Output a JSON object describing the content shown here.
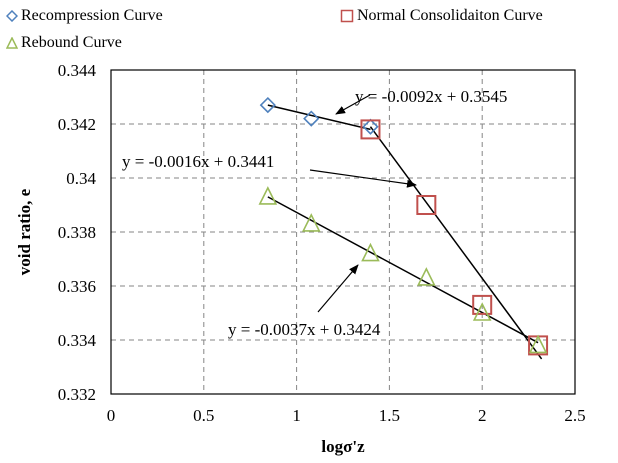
{
  "chart_data": {
    "type": "scatter",
    "xlabel": "logσ'z",
    "ylabel": "void ratio, e",
    "xlim": [
      0,
      2.5
    ],
    "ylim": [
      0.332,
      0.344
    ],
    "xticks": [
      "0",
      "0.5",
      "1",
      "1.5",
      "2",
      "2.5"
    ],
    "yticks": [
      "0.332",
      "0.334",
      "0.336",
      "0.338",
      "0.34",
      "0.342",
      "0.344"
    ],
    "grid": true,
    "legend_placement": "top",
    "series": [
      {
        "name": "Recompression Curve",
        "marker": "diamond",
        "color": "#4f81bd",
        "x": [
          0.845,
          1.079,
          1.398
        ],
        "y": [
          0.3427,
          0.3422,
          0.3419
        ]
      },
      {
        "name": "Normal Consolidaiton Curve",
        "marker": "square",
        "color": "#c0504d",
        "x": [
          1.398,
          1.699,
          2.0,
          2.301
        ],
        "y": [
          0.3418,
          0.339,
          0.3353,
          0.3338
        ]
      },
      {
        "name": "Rebound Curve",
        "marker": "triangle",
        "color": "#9bbb59",
        "x": [
          0.845,
          1.079,
          1.398,
          1.699,
          2.0,
          2.301
        ],
        "y": [
          0.3393,
          0.3383,
          0.3372,
          0.3363,
          0.335,
          0.3338
        ]
      }
    ],
    "trendlines": [
      {
        "series": "Recompression Curve",
        "equation": "y = -0.0016x + 0.3441",
        "x": [
          0.845,
          1.398
        ],
        "y": [
          0.3427,
          0.3418
        ]
      },
      {
        "series": "Normal Consolidaiton Curve",
        "equation": "y = -0.0092x + 0.3545",
        "x": [
          1.398,
          2.32
        ],
        "y": [
          0.3419,
          0.3333
        ]
      },
      {
        "series": "Rebound Curve",
        "equation": "y = -0.0037x + 0.3424",
        "x": [
          0.845,
          2.301
        ],
        "y": [
          0.3393,
          0.3339
        ]
      }
    ],
    "annotations": [
      {
        "text": "y = -0.0092x + 0.3545",
        "points_to": "Normal Consolidaiton Curve trendline"
      },
      {
        "text": "y = -0.0016x + 0.3441",
        "points_to": "Recompression Curve trendline"
      },
      {
        "text": "y = -0.0037x + 0.3424",
        "points_to": "Rebound Curve trendline"
      }
    ]
  }
}
